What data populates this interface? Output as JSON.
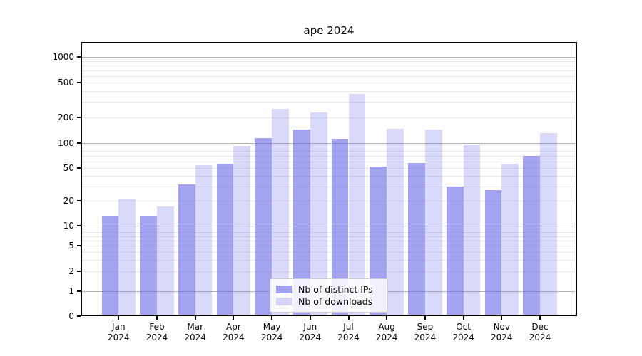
{
  "title": "ape 2024",
  "legend": {
    "items": [
      {
        "label": "Nb of distinct IPs",
        "color": "rgba(102,102,230,0.6)"
      },
      {
        "label": "Nb of downloads",
        "color": "rgba(102,102,230,0.25)"
      }
    ]
  },
  "colors": {
    "bar_ips": "rgba(102,102,230,0.6)",
    "bar_downloads": "rgba(102,102,230,0.25)",
    "grid_major": "#b3b3b3",
    "grid_minor": "#e9e9ed"
  },
  "y_axis": {
    "tick_labels": [
      "0",
      "1",
      "2",
      "5",
      "10",
      "20",
      "50",
      "100",
      "200",
      "500",
      "1000"
    ]
  },
  "x_axis": {
    "tick_labels": [
      {
        "month": "Jan",
        "year": "2024"
      },
      {
        "month": "Feb",
        "year": "2024"
      },
      {
        "month": "Mar",
        "year": "2024"
      },
      {
        "month": "Apr",
        "year": "2024"
      },
      {
        "month": "May",
        "year": "2024"
      },
      {
        "month": "Jun",
        "year": "2024"
      },
      {
        "month": "Jul",
        "year": "2024"
      },
      {
        "month": "Aug",
        "year": "2024"
      },
      {
        "month": "Sep",
        "year": "2024"
      },
      {
        "month": "Oct",
        "year": "2024"
      },
      {
        "month": "Nov",
        "year": "2024"
      },
      {
        "month": "Dec",
        "year": "2024"
      }
    ]
  },
  "chart_data": {
    "type": "bar",
    "title": "ape 2024",
    "xlabel": "",
    "ylabel": "",
    "y_scale": "symlog",
    "yticks": [
      0,
      1,
      2,
      5,
      10,
      20,
      50,
      100,
      200,
      500,
      1000
    ],
    "ylim": [
      0,
      1500
    ],
    "grid": true,
    "legend_position": "lower center",
    "categories": [
      "Jan 2024",
      "Feb 2024",
      "Mar 2024",
      "Apr 2024",
      "May 2024",
      "Jun 2024",
      "Jul 2024",
      "Aug 2024",
      "Sep 2024",
      "Oct 2024",
      "Nov 2024",
      "Dec 2024"
    ],
    "series": [
      {
        "name": "Nb of distinct IPs",
        "values": [
          13,
          13,
          32,
          56,
          115,
          143,
          112,
          52,
          58,
          30,
          27,
          70
        ]
      },
      {
        "name": "Nb of downloads",
        "values": [
          21,
          17,
          54,
          92,
          250,
          225,
          370,
          146,
          144,
          97,
          56,
          130
        ]
      }
    ]
  }
}
